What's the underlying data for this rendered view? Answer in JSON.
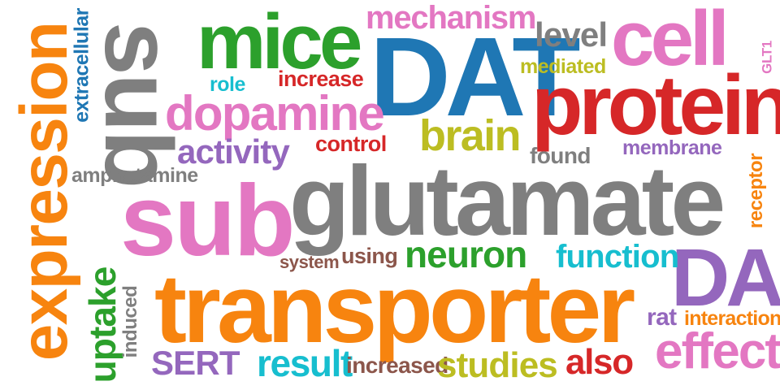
{
  "colors": {
    "orange": "#f7840f",
    "blue": "#1f77b4",
    "green": "#2ca02c",
    "red": "#d62728",
    "purple": "#9467bd",
    "brown": "#8c564b",
    "pink": "#e377c2",
    "gray": "#7f7f7f",
    "olive": "#bcbd22",
    "cyan": "#17becf"
  },
  "words": [
    {
      "id": "glutamate",
      "text": "glutamate",
      "color": "gray"
    },
    {
      "id": "transporter",
      "text": "transporter",
      "color": "orange"
    },
    {
      "id": "expression",
      "text": "expression",
      "color": "orange"
    },
    {
      "id": "sub-vertical",
      "text": "sub",
      "color": "gray"
    },
    {
      "id": "sub",
      "text": "sub",
      "color": "pink"
    },
    {
      "id": "dat",
      "text": "DAT",
      "color": "blue"
    },
    {
      "id": "mice",
      "text": "mice",
      "color": "green"
    },
    {
      "id": "protein",
      "text": "protein",
      "color": "red"
    },
    {
      "id": "cell",
      "text": "cell",
      "color": "pink"
    },
    {
      "id": "da",
      "text": "DA",
      "color": "purple"
    },
    {
      "id": "dopamine",
      "text": "dopamine",
      "color": "pink"
    },
    {
      "id": "mechanism",
      "text": "mechanism",
      "color": "pink"
    },
    {
      "id": "level",
      "text": "level",
      "color": "gray"
    },
    {
      "id": "mediated",
      "text": "mediated",
      "color": "olive"
    },
    {
      "id": "glt1",
      "text": "GLT1",
      "color": "pink"
    },
    {
      "id": "extracellular",
      "text": "extracellular",
      "color": "blue"
    },
    {
      "id": "role",
      "text": "role",
      "color": "cyan"
    },
    {
      "id": "increase",
      "text": "increase",
      "color": "red"
    },
    {
      "id": "brain",
      "text": "brain",
      "color": "olive"
    },
    {
      "id": "activity",
      "text": "activity",
      "color": "purple"
    },
    {
      "id": "control",
      "text": "control",
      "color": "red"
    },
    {
      "id": "found",
      "text": "found",
      "color": "gray"
    },
    {
      "id": "membrane",
      "text": "membrane",
      "color": "purple"
    },
    {
      "id": "amphetamine",
      "text": "amphetamine",
      "color": "gray"
    },
    {
      "id": "receptor",
      "text": "receptor",
      "color": "orange"
    },
    {
      "id": "system",
      "text": "system",
      "color": "brown"
    },
    {
      "id": "using",
      "text": "using",
      "color": "brown"
    },
    {
      "id": "neuron",
      "text": "neuron",
      "color": "green"
    },
    {
      "id": "function",
      "text": "function",
      "color": "cyan"
    },
    {
      "id": "uptake",
      "text": "uptake",
      "color": "green"
    },
    {
      "id": "induced",
      "text": "induced",
      "color": "gray"
    },
    {
      "id": "rat",
      "text": "rat",
      "color": "purple"
    },
    {
      "id": "interaction",
      "text": "interaction",
      "color": "orange"
    },
    {
      "id": "effect",
      "text": "effect",
      "color": "pink"
    },
    {
      "id": "sert",
      "text": "SERT",
      "color": "purple"
    },
    {
      "id": "result",
      "text": "result",
      "color": "cyan"
    },
    {
      "id": "increased",
      "text": "increased",
      "color": "brown"
    },
    {
      "id": "studies",
      "text": "studies",
      "color": "olive"
    },
    {
      "id": "also",
      "text": "also",
      "color": "red"
    }
  ]
}
